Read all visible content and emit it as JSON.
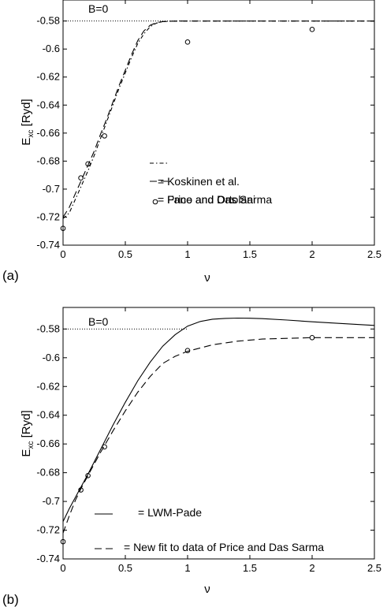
{
  "chart_data": [
    {
      "type": "line",
      "panel_label": "(a)",
      "xlabel": "ν",
      "ylabel": {
        "main": "E",
        "sub": "xc",
        "unit": " [Ryd]"
      },
      "xlim": [
        0,
        2.5
      ],
      "ylim": [
        -0.74,
        -0.565
      ],
      "xticks": [
        0,
        0.5,
        1,
        1.5,
        2,
        2.5
      ],
      "xtick_labels": [
        "0",
        "0.5",
        "1",
        "1.5",
        "2",
        "2.5"
      ],
      "yticks": [
        -0.58,
        -0.6,
        -0.62,
        -0.64,
        -0.66,
        -0.68,
        -0.7,
        -0.72,
        -0.74
      ],
      "ytick_labels": [
        "-0.58",
        "-0.6",
        "-0.62",
        "-0.64",
        "-0.66",
        "-0.68",
        "-0.7",
        "-0.72",
        "-0.74"
      ],
      "annotation": "B=0",
      "reference_line": {
        "y": -0.58,
        "x": [
          0,
          1.0
        ],
        "style": "dotted"
      },
      "series": [
        {
          "name": "= Koskinen et al.",
          "style": "dash-dot",
          "x": [
            0,
            0.05,
            0.1,
            0.15,
            0.2,
            0.25,
            0.3,
            0.35,
            0.4,
            0.45,
            0.5,
            0.55,
            0.6,
            0.65,
            0.7,
            0.75,
            0.8,
            0.85,
            0.9,
            0.95,
            1.0,
            1.5,
            2.0,
            2.5
          ],
          "y": [
            -0.721,
            -0.717,
            -0.707,
            -0.697,
            -0.687,
            -0.676,
            -0.664,
            -0.652,
            -0.64,
            -0.628,
            -0.617,
            -0.606,
            -0.596,
            -0.589,
            -0.584,
            -0.5815,
            -0.5805,
            -0.5802,
            -0.5801,
            -0.58,
            -0.58,
            -0.58,
            -0.58,
            -0.58
          ]
        },
        {
          "name": "= Fano and Ortolani",
          "style": "dashed",
          "x": [
            0,
            0.05,
            0.1,
            0.15,
            0.2,
            0.25,
            0.3,
            0.35,
            0.4,
            0.45,
            0.5,
            0.55,
            0.6,
            0.65,
            0.7,
            0.75,
            0.8,
            0.85,
            0.9,
            0.95,
            1.0,
            1.5,
            2.0,
            2.5
          ],
          "y": [
            -0.72,
            -0.713,
            -0.703,
            -0.693,
            -0.683,
            -0.673,
            -0.661,
            -0.65,
            -0.638,
            -0.626,
            -0.615,
            -0.604,
            -0.594,
            -0.587,
            -0.583,
            -0.5812,
            -0.5804,
            -0.5802,
            -0.5801,
            -0.58,
            -0.58,
            -0.58,
            -0.58,
            -0.58
          ]
        },
        {
          "name": "= Price and Das Sarma",
          "style": "markers",
          "x": [
            0,
            0.143,
            0.2,
            0.333,
            1.0,
            2.0
          ],
          "y": [
            -0.728,
            -0.692,
            -0.682,
            -0.662,
            -0.595,
            -0.586
          ]
        }
      ]
    },
    {
      "type": "line",
      "panel_label": "(b)",
      "xlabel": "ν",
      "ylabel": {
        "main": "E",
        "sub": "xc",
        "unit": " [Ryd]"
      },
      "xlim": [
        0,
        2.5
      ],
      "ylim": [
        -0.74,
        -0.565
      ],
      "xticks": [
        0,
        0.5,
        1,
        1.5,
        2,
        2.5
      ],
      "xtick_labels": [
        "0",
        "0.5",
        "1",
        "1.5",
        "2",
        "2.5"
      ],
      "yticks": [
        -0.58,
        -0.6,
        -0.62,
        -0.64,
        -0.66,
        -0.68,
        -0.7,
        -0.72,
        -0.74
      ],
      "ytick_labels": [
        "-0.58",
        "-0.6",
        "-0.62",
        "-0.64",
        "-0.66",
        "-0.68",
        "-0.7",
        "-0.72",
        "-0.74"
      ],
      "annotation": "B=0",
      "reference_line": {
        "y": -0.58,
        "x": [
          0,
          1.0
        ],
        "style": "dotted"
      },
      "series": [
        {
          "name": "= LWM-Pade",
          "style": "solid",
          "x": [
            0,
            0.05,
            0.1,
            0.15,
            0.2,
            0.3,
            0.4,
            0.5,
            0.6,
            0.7,
            0.8,
            0.9,
            1.0,
            1.1,
            1.2,
            1.3,
            1.4,
            1.5,
            1.6,
            1.8,
            2.0,
            2.2,
            2.5
          ],
          "y": [
            -0.714,
            -0.705,
            -0.697,
            -0.689,
            -0.681,
            -0.664,
            -0.647,
            -0.631,
            -0.616,
            -0.603,
            -0.592,
            -0.584,
            -0.578,
            -0.5748,
            -0.5732,
            -0.5726,
            -0.5724,
            -0.5725,
            -0.5728,
            -0.5738,
            -0.575,
            -0.576,
            -0.5775
          ]
        },
        {
          "name": "= New fit to data of Price and Das Sarma",
          "style": "dashed",
          "x": [
            0,
            0.05,
            0.1,
            0.15,
            0.2,
            0.3,
            0.4,
            0.5,
            0.6,
            0.7,
            0.8,
            0.9,
            1.0,
            1.2,
            1.4,
            1.6,
            1.8,
            2.0,
            2.2,
            2.5
          ],
          "y": [
            -0.722,
            -0.71,
            -0.699,
            -0.69,
            -0.682,
            -0.666,
            -0.651,
            -0.637,
            -0.624,
            -0.613,
            -0.604,
            -0.599,
            -0.5955,
            -0.591,
            -0.5885,
            -0.587,
            -0.5865,
            -0.586,
            -0.586,
            -0.586
          ]
        },
        {
          "name": "",
          "style": "markers",
          "x": [
            0,
            0.143,
            0.2,
            0.333,
            1.0,
            2.0
          ],
          "y": [
            -0.728,
            -0.692,
            -0.682,
            -0.662,
            -0.595,
            -0.586
          ]
        }
      ]
    }
  ]
}
